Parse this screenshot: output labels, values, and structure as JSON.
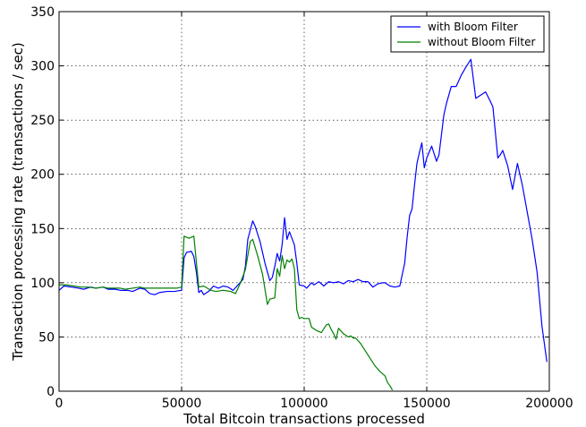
{
  "chart_data": {
    "type": "line",
    "xlabel": "Total Bitcoin transactions processed",
    "ylabel": "Transaction processing rate (transactions / sec)",
    "xlim": [
      0,
      200000
    ],
    "ylim": [
      0,
      350
    ],
    "xticks": [
      0,
      50000,
      100000,
      150000,
      200000
    ],
    "yticks": [
      0,
      50,
      100,
      150,
      200,
      250,
      300,
      350
    ],
    "grid": true,
    "legend": "top-right",
    "series": [
      {
        "name": "with Bloom Filter",
        "color": "#0000ff",
        "points": [
          [
            0,
            93
          ],
          [
            2000,
            97
          ],
          [
            5000,
            96
          ],
          [
            8000,
            95
          ],
          [
            10000,
            94
          ],
          [
            13000,
            96
          ],
          [
            15000,
            95
          ],
          [
            18000,
            96
          ],
          [
            20000,
            94
          ],
          [
            23000,
            94
          ],
          [
            25000,
            93
          ],
          [
            28000,
            93
          ],
          [
            30000,
            92
          ],
          [
            33000,
            95
          ],
          [
            35000,
            94
          ],
          [
            37000,
            90
          ],
          [
            39000,
            89
          ],
          [
            41000,
            91
          ],
          [
            44000,
            92
          ],
          [
            47000,
            92
          ],
          [
            50000,
            93
          ],
          [
            51000,
            123
          ],
          [
            52000,
            128
          ],
          [
            54000,
            129
          ],
          [
            55000,
            124
          ],
          [
            56000,
            110
          ],
          [
            57000,
            91
          ],
          [
            58000,
            93
          ],
          [
            59000,
            89
          ],
          [
            61000,
            92
          ],
          [
            63000,
            97
          ],
          [
            65000,
            95
          ],
          [
            67000,
            97
          ],
          [
            69000,
            96
          ],
          [
            71000,
            93
          ],
          [
            73000,
            98
          ],
          [
            75000,
            103
          ],
          [
            76000,
            115
          ],
          [
            77000,
            140
          ],
          [
            79000,
            157
          ],
          [
            80000,
            152
          ],
          [
            82000,
            138
          ],
          [
            84000,
            118
          ],
          [
            86000,
            102
          ],
          [
            87000,
            105
          ],
          [
            88000,
            115
          ],
          [
            89000,
            127
          ],
          [
            90000,
            120
          ],
          [
            91000,
            135
          ],
          [
            92000,
            160
          ],
          [
            93000,
            140
          ],
          [
            94000,
            147
          ],
          [
            96000,
            135
          ],
          [
            97000,
            118
          ],
          [
            98000,
            98
          ],
          [
            100000,
            97
          ],
          [
            101000,
            95
          ],
          [
            103000,
            100
          ],
          [
            104000,
            98
          ],
          [
            106000,
            101
          ],
          [
            108000,
            97
          ],
          [
            110000,
            101
          ],
          [
            112000,
            100
          ],
          [
            114000,
            101
          ],
          [
            116000,
            99
          ],
          [
            118000,
            102
          ],
          [
            120000,
            101
          ],
          [
            122000,
            103
          ],
          [
            124000,
            101
          ],
          [
            126000,
            101
          ],
          [
            128000,
            96
          ],
          [
            130000,
            99
          ],
          [
            132000,
            100
          ],
          [
            133000,
            100
          ],
          [
            135000,
            97
          ],
          [
            137000,
            96
          ],
          [
            139000,
            97
          ],
          [
            141000,
            118
          ],
          [
            142000,
            142
          ],
          [
            143000,
            162
          ],
          [
            144000,
            168
          ],
          [
            145000,
            190
          ],
          [
            146000,
            210
          ],
          [
            147000,
            220
          ],
          [
            148000,
            229
          ],
          [
            149000,
            206
          ],
          [
            150000,
            215
          ],
          [
            152000,
            226
          ],
          [
            154000,
            212
          ],
          [
            155000,
            218
          ],
          [
            157000,
            255
          ],
          [
            158000,
            265
          ],
          [
            160000,
            281
          ],
          [
            162000,
            281
          ],
          [
            164000,
            291
          ],
          [
            166000,
            299
          ],
          [
            168000,
            306
          ],
          [
            170000,
            270
          ],
          [
            172000,
            273
          ],
          [
            174000,
            276
          ],
          [
            176000,
            267
          ],
          [
            177000,
            262
          ],
          [
            179000,
            215
          ],
          [
            180000,
            218
          ],
          [
            181000,
            222
          ],
          [
            183000,
            208
          ],
          [
            185000,
            186
          ],
          [
            187000,
            210
          ],
          [
            189000,
            190
          ],
          [
            191000,
            165
          ],
          [
            193000,
            140
          ],
          [
            195000,
            110
          ],
          [
            197000,
            60
          ],
          [
            199000,
            27
          ]
        ]
      },
      {
        "name": "without Bloom Filter",
        "color": "#008000",
        "points": [
          [
            0,
            98
          ],
          [
            3000,
            98
          ],
          [
            6000,
            97
          ],
          [
            9000,
            96
          ],
          [
            12000,
            96
          ],
          [
            15000,
            95
          ],
          [
            18000,
            96
          ],
          [
            20000,
            95
          ],
          [
            23000,
            95
          ],
          [
            25000,
            95
          ],
          [
            27000,
            94
          ],
          [
            30000,
            95
          ],
          [
            33000,
            96
          ],
          [
            35000,
            95
          ],
          [
            38000,
            95
          ],
          [
            41000,
            95
          ],
          [
            43000,
            95
          ],
          [
            45000,
            95
          ],
          [
            48000,
            95
          ],
          [
            50000,
            96
          ],
          [
            51000,
            143
          ],
          [
            53000,
            141
          ],
          [
            55000,
            143
          ],
          [
            57000,
            96
          ],
          [
            59000,
            97
          ],
          [
            62000,
            93
          ],
          [
            64000,
            92
          ],
          [
            67000,
            93
          ],
          [
            70000,
            92
          ],
          [
            72000,
            90
          ],
          [
            74000,
            100
          ],
          [
            76000,
            112
          ],
          [
            77000,
            125
          ],
          [
            78000,
            138
          ],
          [
            79000,
            140
          ],
          [
            81000,
            125
          ],
          [
            83000,
            108
          ],
          [
            85000,
            80
          ],
          [
            86000,
            85
          ],
          [
            88000,
            86
          ],
          [
            89000,
            113
          ],
          [
            90000,
            106
          ],
          [
            91000,
            125
          ],
          [
            92000,
            113
          ],
          [
            93000,
            121
          ],
          [
            94000,
            119
          ],
          [
            95000,
            122
          ],
          [
            96000,
            113
          ],
          [
            97000,
            75
          ],
          [
            98000,
            67
          ],
          [
            99000,
            68
          ],
          [
            100000,
            67
          ],
          [
            102000,
            67
          ],
          [
            103000,
            59
          ],
          [
            105000,
            56
          ],
          [
            107000,
            54
          ],
          [
            109000,
            61
          ],
          [
            110000,
            62
          ],
          [
            111000,
            57
          ],
          [
            112000,
            53
          ],
          [
            113000,
            48
          ],
          [
            114000,
            58
          ],
          [
            116000,
            53
          ],
          [
            118000,
            50
          ],
          [
            119000,
            51
          ],
          [
            120000,
            49
          ],
          [
            121000,
            49
          ],
          [
            123000,
            44
          ],
          [
            125000,
            37
          ],
          [
            127000,
            30
          ],
          [
            129000,
            23
          ],
          [
            131000,
            18
          ],
          [
            133000,
            14
          ],
          [
            134000,
            8
          ],
          [
            135000,
            5
          ],
          [
            136000,
            1
          ]
        ]
      }
    ]
  }
}
